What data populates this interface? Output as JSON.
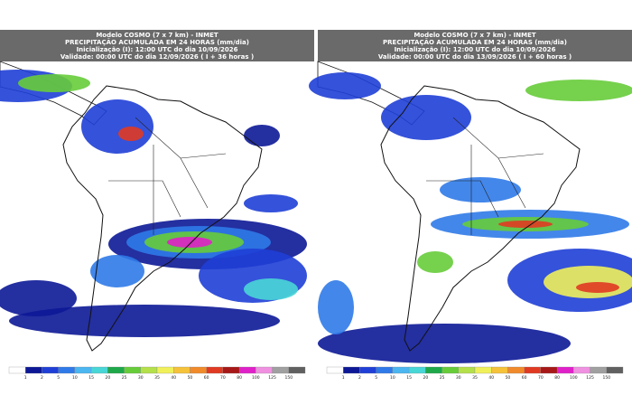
{
  "panels": [
    {
      "header": {
        "model": "Modelo COSMO (7 x 7 km) - INMET",
        "product": "PRECIPITAÇÃO ACUMULADA EM 24 HORAS (mm/dia)",
        "init": "Inicialização (I): 12:00 UTC do dia 10/09/2026",
        "validity": "Validade: 00:00 UTC do dia 12/09/2026 ( I + 36 horas )"
      }
    },
    {
      "header": {
        "model": "Modelo COSMO (7 x 7 km) - INMET",
        "product": "PRECIPITAÇÃO ACUMULADA EM 24 HORAS (mm/dia)",
        "init": "Inicialização (I): 12:00 UTC do dia 10/09/2026",
        "validity": "Validade: 00:00 UTC do dia 13/09/2026 ( I + 60 horas )"
      }
    }
  ],
  "legend": {
    "colors": [
      "#ffffff",
      "#0c1896",
      "#1f3fd6",
      "#2f7ae8",
      "#4bb6f0",
      "#49d6d6",
      "#1ea84a",
      "#67cc3a",
      "#b4e04a",
      "#f0f05a",
      "#f5c23a",
      "#f08a2a",
      "#e03a22",
      "#a81818",
      "#e020c8",
      "#f090e0",
      "#a0a0a0",
      "#606060"
    ],
    "labels": [
      "1",
      "2",
      "5",
      "10",
      "15",
      "20",
      "25",
      "30",
      "35",
      "40",
      "50",
      "60",
      "70",
      "80",
      "100",
      "125",
      "150"
    ]
  }
}
